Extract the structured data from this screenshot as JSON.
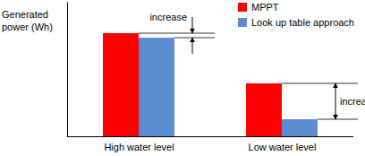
{
  "chart_data": {
    "type": "bar",
    "y_label": "Generated power (Wh)",
    "categories": [
      "High water level",
      "Low water level"
    ],
    "series": [
      {
        "name": "MPPT",
        "color": "#ff0000",
        "values": [
          115,
          59
        ]
      },
      {
        "name": "Look up table approach",
        "color": "#5b8bd0",
        "values": [
          110,
          19
        ]
      }
    ],
    "ylim": [
      0,
      150
    ],
    "tick_labels": "x",
    "legend": "upper right",
    "annotations": [
      {
        "text": "increase",
        "x": "High water level"
      },
      {
        "text": "increase",
        "x": "Low water level"
      }
    ]
  }
}
